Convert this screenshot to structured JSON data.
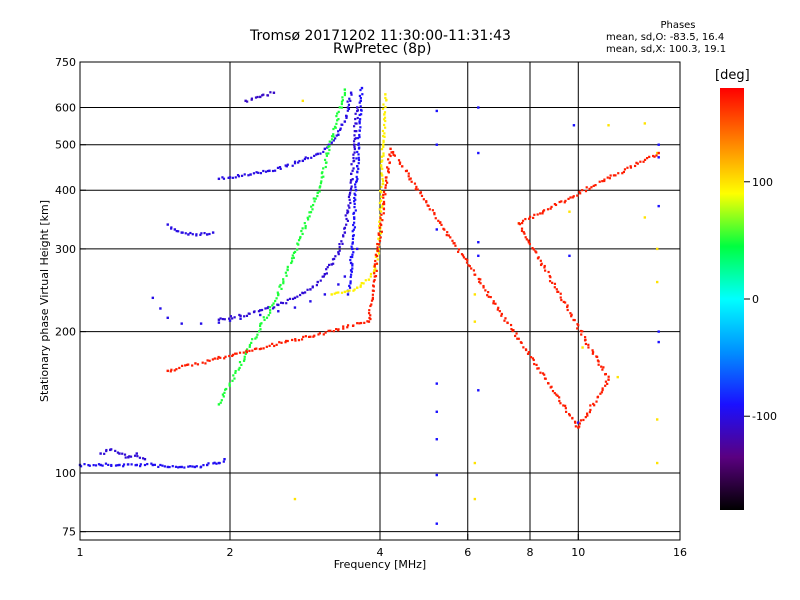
{
  "chart_data": {
    "type": "scatter",
    "title": "Tromsø 20171202 11:30:00-11:31:43",
    "subtitle": "RwPretec (8p)",
    "xlabel": "Frequency [MHz]",
    "ylabel": "Stationary phase Virtual Height [km]",
    "x_scale": "log",
    "y_scale": "log",
    "xlim": [
      1,
      16
    ],
    "ylim": [
      72,
      750
    ],
    "x_ticks": [
      "1",
      "2",
      "4",
      "6",
      "8",
      "10",
      "16"
    ],
    "y_ticks": [
      "75",
      "100",
      "200",
      "300",
      "400",
      "500",
      "600",
      "750"
    ],
    "grid": true,
    "stats": {
      "heading": "Phases",
      "line_o": "mean, sd,O: -83.5, 16.4",
      "line_x": "mean, sd,X: 100.3, 19.1"
    },
    "colorbar": {
      "label": "[deg]",
      "range": [
        -180,
        180
      ],
      "ticks": [
        "100",
        "0",
        "-100"
      ],
      "colors": [
        "#000000",
        "#5a0080",
        "#1a10ff",
        "#0090ff",
        "#00ffff",
        "#00ff40",
        "#ffff00",
        "#ff8000",
        "#ff0000"
      ]
    },
    "traces": [
      {
        "name": "",
        "phase": -95,
        "points": [
          [
            1.0,
            104
          ],
          [
            1.1,
            104
          ],
          [
            1.2,
            104
          ],
          [
            1.3,
            104
          ],
          [
            1.4,
            104
          ],
          [
            1.5,
            103
          ],
          [
            1.6,
            103
          ],
          [
            1.7,
            103
          ],
          [
            1.8,
            104
          ],
          [
            1.9,
            105
          ],
          [
            1.95,
            107
          ]
        ]
      },
      {
        "name": "",
        "phase": -105,
        "points": [
          [
            1.1,
            110
          ],
          [
            1.15,
            112
          ],
          [
            1.2,
            110
          ],
          [
            1.25,
            108
          ],
          [
            1.3,
            110
          ],
          [
            1.35,
            107
          ]
        ]
      },
      {
        "name": "",
        "phase": -98,
        "points": [
          [
            1.4,
            236
          ],
          [
            1.45,
            224
          ],
          [
            1.5,
            214
          ],
          [
            1.6,
            208
          ],
          [
            1.75,
            208
          ],
          [
            1.9,
            209
          ],
          [
            2.0,
            211
          ],
          [
            2.1,
            213
          ],
          [
            2.3,
            217
          ],
          [
            2.5,
            221
          ],
          [
            2.7,
            225
          ],
          [
            2.9,
            232
          ],
          [
            3.1,
            240
          ],
          [
            3.3,
            252
          ],
          [
            3.4,
            262
          ],
          [
            3.5,
            280
          ],
          [
            3.6,
            300
          ]
        ]
      },
      {
        "name": "",
        "phase": -105,
        "points": [
          [
            1.9,
            212
          ],
          [
            2.1,
            216
          ],
          [
            2.3,
            222
          ],
          [
            2.5,
            228
          ],
          [
            2.7,
            236
          ],
          [
            2.9,
            246
          ],
          [
            3.0,
            255
          ],
          [
            3.1,
            265
          ],
          [
            3.2,
            278
          ],
          [
            3.3,
            295
          ],
          [
            3.4,
            325
          ],
          [
            3.45,
            360
          ],
          [
            3.5,
            420
          ],
          [
            3.55,
            500
          ],
          [
            3.6,
            600
          ]
        ]
      },
      {
        "name": "",
        "phase": -100,
        "points": [
          [
            1.9,
            423
          ],
          [
            2.0,
            426
          ],
          [
            2.2,
            432
          ],
          [
            2.4,
            440
          ],
          [
            2.6,
            450
          ],
          [
            2.8,
            462
          ],
          [
            3.0,
            478
          ],
          [
            3.1,
            490
          ],
          [
            3.2,
            505
          ],
          [
            3.3,
            525
          ],
          [
            3.4,
            560
          ],
          [
            3.45,
            600
          ],
          [
            3.5,
            645
          ]
        ]
      },
      {
        "name": "",
        "phase": -92,
        "points": [
          [
            3.45,
            240
          ],
          [
            3.5,
            270
          ],
          [
            3.52,
            300
          ],
          [
            3.55,
            350
          ],
          [
            3.58,
            400
          ],
          [
            3.6,
            450
          ],
          [
            3.62,
            500
          ],
          [
            3.64,
            560
          ],
          [
            3.66,
            620
          ],
          [
            3.68,
            660
          ]
        ]
      },
      {
        "name": "",
        "phase": 95,
        "points": [
          [
            3.2,
            240
          ],
          [
            3.4,
            243
          ],
          [
            3.6,
            248
          ],
          [
            3.8,
            258
          ],
          [
            3.9,
            270
          ],
          [
            3.95,
            290
          ],
          [
            4.0,
            330
          ],
          [
            4.02,
            380
          ],
          [
            4.04,
            430
          ],
          [
            4.06,
            500
          ],
          [
            4.08,
            580
          ],
          [
            4.1,
            640
          ]
        ]
      },
      {
        "name": "",
        "phase": -100,
        "points": [
          [
            1.5,
            338
          ],
          [
            1.55,
            330
          ],
          [
            1.6,
            325
          ],
          [
            1.65,
            322
          ],
          [
            1.8,
            322
          ],
          [
            1.85,
            325
          ]
        ]
      },
      {
        "name": "",
        "phase": -110,
        "points": [
          [
            2.15,
            620
          ],
          [
            2.3,
            632
          ],
          [
            2.45,
            645
          ]
        ]
      },
      {
        "name": "",
        "phase": -90,
        "points": [
          [
            5.2,
            590
          ],
          [
            5.2,
            500
          ],
          [
            5.2,
            330
          ],
          [
            5.2,
            155
          ],
          [
            5.2,
            135
          ],
          [
            5.2,
            118
          ],
          [
            5.2,
            99
          ],
          [
            5.2,
            78
          ],
          [
            6.3,
            600
          ],
          [
            6.3,
            480
          ],
          [
            6.3,
            310
          ],
          [
            6.3,
            290
          ],
          [
            6.3,
            150
          ],
          [
            9.8,
            550
          ],
          [
            9.6,
            290
          ],
          [
            10.0,
            128
          ],
          [
            14.5,
            500
          ],
          [
            14.5,
            470
          ],
          [
            14.5,
            370
          ],
          [
            14.5,
            200
          ],
          [
            14.5,
            190
          ]
        ]
      },
      {
        "name": "",
        "phase": 100,
        "points": [
          [
            2.8,
            620
          ],
          [
            3.9,
            270
          ],
          [
            6.2,
            240
          ],
          [
            6.2,
            210
          ],
          [
            6.2,
            105
          ],
          [
            6.2,
            88
          ],
          [
            7.6,
            340
          ],
          [
            9.6,
            360
          ],
          [
            10.2,
            185
          ],
          [
            11.5,
            550
          ],
          [
            12.0,
            160
          ],
          [
            13.6,
            555
          ],
          [
            13.6,
            350
          ],
          [
            14.4,
            480
          ],
          [
            14.4,
            300
          ],
          [
            14.4,
            255
          ],
          [
            14.4,
            130
          ],
          [
            14.4,
            105
          ],
          [
            2.7,
            88
          ]
        ]
      },
      {
        "name": "",
        "phase": 50,
        "points": [
          [
            1.9,
            140
          ],
          [
            2.5,
            240
          ],
          [
            3.0,
            395
          ],
          [
            3.4,
            655
          ]
        ]
      },
      {
        "name": "",
        "phase": 170,
        "points": [
          [
            1.5,
            165
          ],
          [
            3.8,
            210
          ],
          [
            4.2,
            490
          ],
          [
            10.0,
            125
          ],
          [
            11.5,
            158
          ],
          [
            7.6,
            340
          ],
          [
            14.5,
            480
          ]
        ]
      }
    ]
  }
}
